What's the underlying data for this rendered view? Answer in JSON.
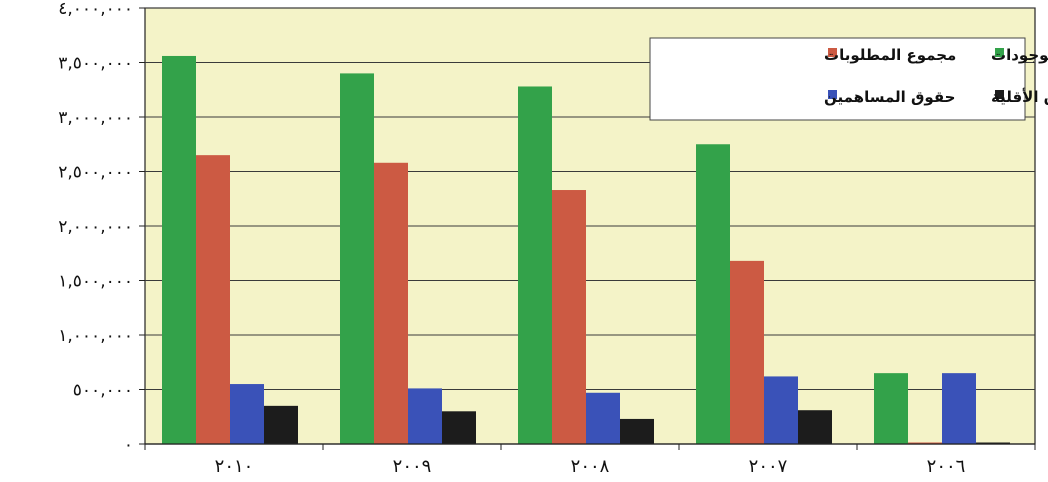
{
  "chart_data": {
    "type": "bar",
    "categories": [
      "٢٠١٠",
      "٢٠٠٩",
      "٢٠٠٨",
      "٢٠٠٧",
      "٢٠٠٦"
    ],
    "series": [
      {
        "name": "مجموع الموجودات",
        "color": "#33a24a",
        "values": [
          3560000,
          3400000,
          3280000,
          2750000,
          650000
        ]
      },
      {
        "name": "مجموع المطلوبات",
        "color": "#cc5a43",
        "values": [
          2650000,
          2580000,
          2330000,
          1680000,
          0
        ]
      },
      {
        "name": "حقوق المساهمين",
        "color": "#3a52b8",
        "values": [
          550000,
          510000,
          470000,
          620000,
          650000
        ]
      },
      {
        "name": "حقوق الأقلية",
        "color": "#1c1c1c",
        "values": [
          350000,
          300000,
          230000,
          310000,
          0
        ]
      }
    ],
    "ylim": [
      0,
      4000000
    ],
    "yticks": [
      0,
      500000,
      1000000,
      1500000,
      2000000,
      2500000,
      3000000,
      3500000,
      4000000
    ],
    "ytick_labels": [
      "٠",
      "٥٠٠,٠٠٠",
      "١,٠٠٠,٠٠٠",
      "١,٥٠٠,٠٠٠",
      "٢,٠٠٠,٠٠٠",
      "٢,٥٠٠,٠٠٠",
      "٣,٠٠٠,٠٠٠",
      "٣,٥٠٠,٠٠٠",
      "٤,٠٠٠,٠٠٠"
    ],
    "grid": true,
    "legend_position": "top-right",
    "plot_background": "#f4f3c8"
  }
}
